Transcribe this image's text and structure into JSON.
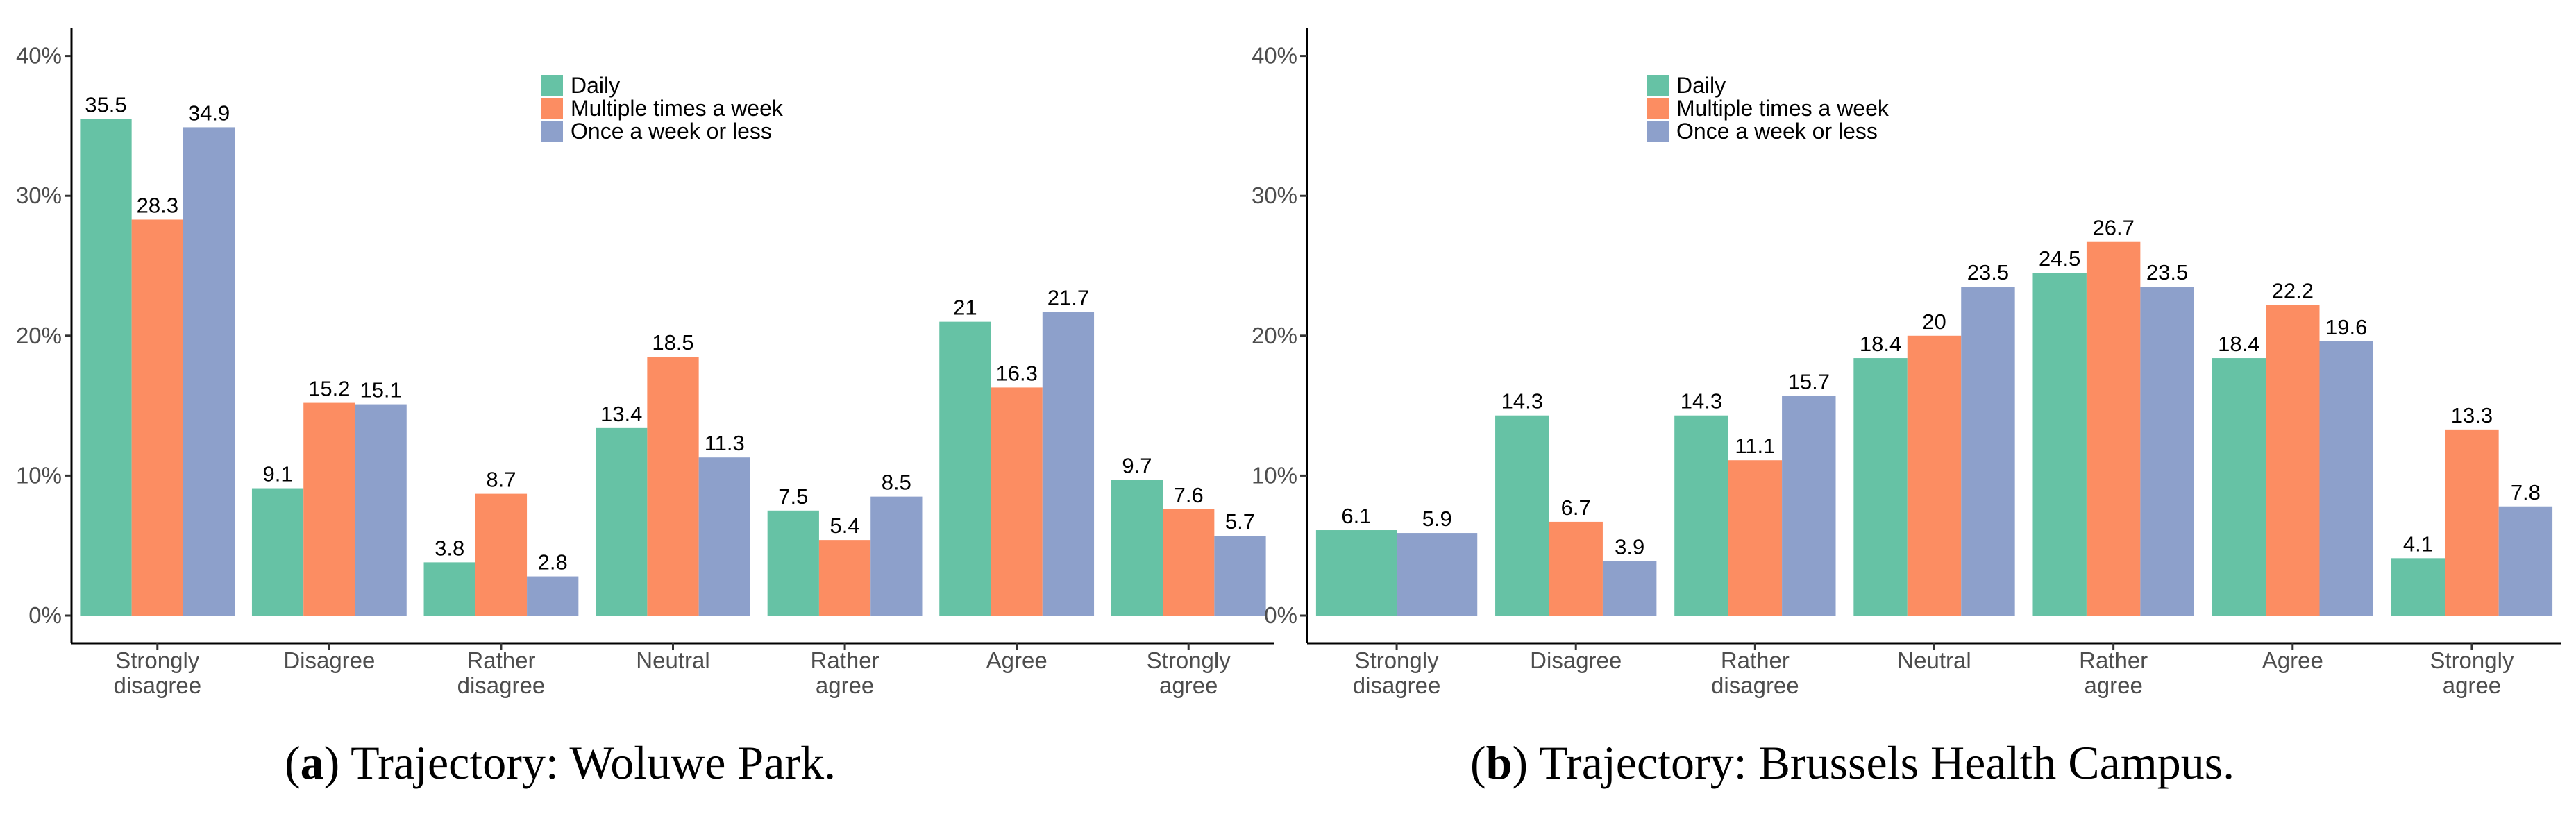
{
  "chart_data": [
    {
      "type": "bar",
      "panel": "a",
      "caption": "Trajectory: Woluwe Park.",
      "categories": [
        [
          "Strongly",
          "disagree"
        ],
        [
          "Disagree"
        ],
        [
          "Rather",
          "disagree"
        ],
        [
          "Neutral"
        ],
        [
          "Rather",
          "agree"
        ],
        [
          "Agree"
        ],
        [
          "Strongly",
          "agree"
        ]
      ],
      "series": [
        {
          "name": "Daily",
          "color": "#66c2a5",
          "values": [
            35.5,
            9.1,
            3.8,
            13.4,
            7.5,
            21,
            9.7
          ]
        },
        {
          "name": "Multiple times a week",
          "color": "#fc8d62",
          "values": [
            28.3,
            15.2,
            8.7,
            18.5,
            5.4,
            16.3,
            7.6
          ]
        },
        {
          "name": "Once a week or less",
          "color": "#8da0cb",
          "values": [
            34.9,
            15.1,
            2.8,
            11.3,
            8.5,
            21.7,
            5.7
          ]
        }
      ],
      "yticks": [
        "0%",
        "10%",
        "20%",
        "30%",
        "40%"
      ],
      "ylim": [
        -2,
        42
      ],
      "legend_position": "top-center"
    },
    {
      "type": "bar",
      "panel": "b",
      "caption": "Trajectory: Brussels Health Campus.",
      "categories": [
        [
          "Strongly",
          "disagree"
        ],
        [
          "Disagree"
        ],
        [
          "Rather",
          "disagree"
        ],
        [
          "Neutral"
        ],
        [
          "Rather",
          "agree"
        ],
        [
          "Agree"
        ],
        [
          "Strongly",
          "agree"
        ]
      ],
      "series": [
        {
          "name": "Daily",
          "color": "#66c2a5",
          "values": [
            6.1,
            14.3,
            14.3,
            18.4,
            24.5,
            18.4,
            4.1
          ]
        },
        {
          "name": "Multiple times a week",
          "color": "#fc8d62",
          "values": [
            null,
            6.7,
            11.1,
            20,
            26.7,
            22.2,
            13.3
          ]
        },
        {
          "name": "Once a week or less",
          "color": "#8da0cb",
          "values": [
            5.9,
            3.9,
            15.7,
            23.5,
            23.5,
            19.6,
            7.8
          ]
        }
      ],
      "yticks": [
        "0%",
        "10%",
        "20%",
        "30%",
        "40%"
      ],
      "ylim": [
        -2,
        42
      ],
      "legend_position": "top-center"
    }
  ]
}
